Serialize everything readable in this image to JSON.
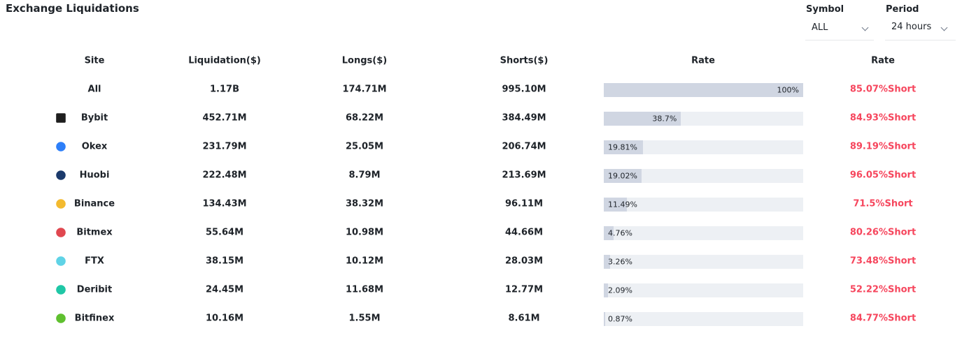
{
  "header": {
    "title": "Exchange Liquidations"
  },
  "filters": [
    {
      "label": "Symbol",
      "value": "ALL"
    },
    {
      "label": "Period",
      "value": "24 hours"
    }
  ],
  "table": {
    "columns": [
      "Site",
      "Liquidation($)",
      "Longs($)",
      "Shorts($)",
      "Rate",
      "Rate"
    ],
    "rows": [
      {
        "site": "All",
        "liquidation": "1.17B",
        "longs": "174.71M",
        "shorts": "995.10M",
        "rate": 100,
        "rate_label": "100%",
        "short_rate": "85.07%Short"
      },
      {
        "site": "Bybit",
        "liquidation": "452.71M",
        "longs": "68.22M",
        "shorts": "384.49M",
        "rate": 38.7,
        "rate_label": "38.7%",
        "short_rate": "84.93%Short"
      },
      {
        "site": "Okex",
        "liquidation": "231.79M",
        "longs": "25.05M",
        "shorts": "206.74M",
        "rate": 19.81,
        "rate_label": "19.81%",
        "short_rate": "89.19%Short"
      },
      {
        "site": "Huobi",
        "liquidation": "222.48M",
        "longs": "8.79M",
        "shorts": "213.69M",
        "rate": 19.02,
        "rate_label": "19.02%",
        "short_rate": "96.05%Short"
      },
      {
        "site": "Binance",
        "liquidation": "134.43M",
        "longs": "38.32M",
        "shorts": "96.11M",
        "rate": 11.49,
        "rate_label": "11.49%",
        "short_rate": "71.5%Short"
      },
      {
        "site": "Bitmex",
        "liquidation": "55.64M",
        "longs": "10.98M",
        "shorts": "44.66M",
        "rate": 4.76,
        "rate_label": "4.76%",
        "short_rate": "80.26%Short"
      },
      {
        "site": "FTX",
        "liquidation": "38.15M",
        "longs": "10.12M",
        "shorts": "28.03M",
        "rate": 3.26,
        "rate_label": "3.26%",
        "short_rate": "73.48%Short"
      },
      {
        "site": "Deribit",
        "liquidation": "24.45M",
        "longs": "11.68M",
        "shorts": "12.77M",
        "rate": 2.09,
        "rate_label": "2.09%",
        "short_rate": "52.22%Short"
      },
      {
        "site": "Bitfinex",
        "liquidation": "10.16M",
        "longs": "1.55M",
        "shorts": "8.61M",
        "rate": 0.87,
        "rate_label": "0.87%",
        "short_rate": "84.77%Short"
      }
    ]
  }
}
